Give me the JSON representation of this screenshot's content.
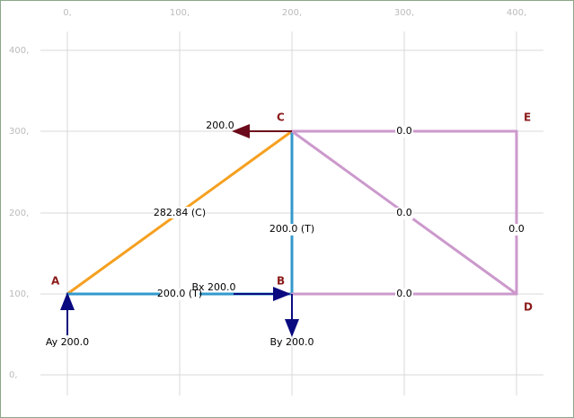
{
  "axes": {
    "x_ticks": [
      "0,",
      "100,",
      "200,",
      "300,",
      "400,"
    ],
    "y_ticks": [
      "400,",
      "300,",
      "200,",
      "100,",
      "0,"
    ]
  },
  "nodes": [
    {
      "label": "A"
    },
    {
      "label": "B"
    },
    {
      "label": "C"
    },
    {
      "label": "D"
    },
    {
      "label": "E"
    }
  ],
  "members": [
    {
      "force": "282.84 (C)"
    },
    {
      "force": "200.0 (T)"
    },
    {
      "force": "200.0 (T)"
    },
    {
      "force": "0.0"
    },
    {
      "force": "0.0"
    },
    {
      "force": "0.0"
    },
    {
      "force": "0.0"
    }
  ],
  "forces": [
    {
      "label": "200.0"
    },
    {
      "label": "Bx 200.0"
    },
    {
      "label": "By 200.0"
    },
    {
      "label": "Ay 200.0"
    }
  ]
}
